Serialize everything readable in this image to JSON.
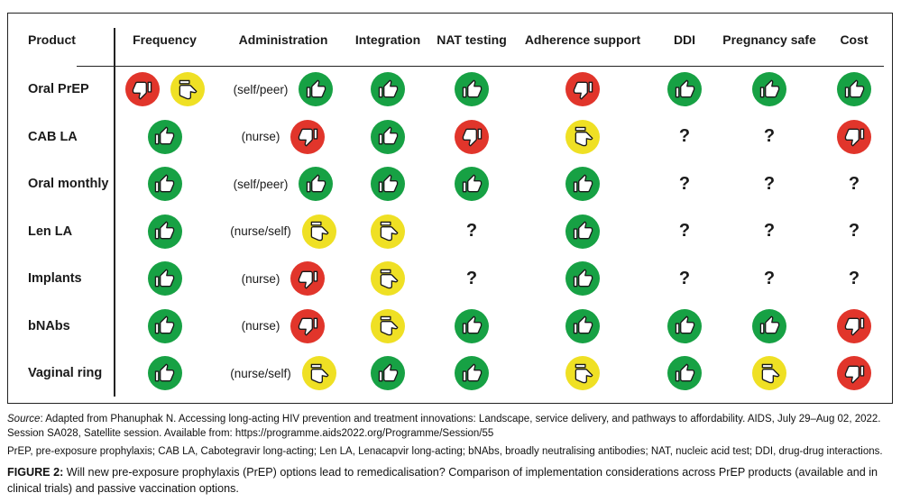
{
  "colors": {
    "green": "#17a144",
    "red": "#e1352b",
    "yellow": "#efe024",
    "line": "#222222"
  },
  "icon_legend": {
    "thumb-up": "favourable",
    "thumb-down": "unfavourable",
    "thumb-neutral": "intermediate",
    "?": "unknown"
  },
  "table": {
    "headers": [
      "Product",
      "Frequency",
      "Administration",
      "Integration",
      "NAT testing",
      "Adherence support",
      "DDI",
      "Pregnancy safe",
      "Cost"
    ],
    "rows": [
      {
        "product": "Oral PrEP",
        "cells": [
          [
            {
              "icon": "thumb-down",
              "color": "red"
            },
            {
              "icon": "thumb-neutral",
              "color": "yellow"
            }
          ],
          [
            {
              "text": "(self/peer)"
            },
            {
              "icon": "thumb-up",
              "color": "green"
            }
          ],
          [
            {
              "icon": "thumb-up",
              "color": "green"
            }
          ],
          [
            {
              "icon": "thumb-up",
              "color": "green"
            }
          ],
          [
            {
              "icon": "thumb-down",
              "color": "red"
            }
          ],
          [
            {
              "icon": "thumb-up",
              "color": "green"
            }
          ],
          [
            {
              "icon": "thumb-up",
              "color": "green"
            }
          ],
          [
            {
              "icon": "thumb-up",
              "color": "green"
            }
          ]
        ]
      },
      {
        "product": "CAB LA",
        "cells": [
          [
            {
              "icon": "thumb-up",
              "color": "green"
            }
          ],
          [
            {
              "text": "(nurse)"
            },
            {
              "icon": "thumb-down",
              "color": "red"
            }
          ],
          [
            {
              "icon": "thumb-up",
              "color": "green"
            }
          ],
          [
            {
              "icon": "thumb-down",
              "color": "red"
            }
          ],
          [
            {
              "icon": "thumb-neutral",
              "color": "yellow"
            }
          ],
          [
            {
              "text": "?"
            }
          ],
          [
            {
              "text": "?"
            }
          ],
          [
            {
              "icon": "thumb-down",
              "color": "red"
            }
          ]
        ]
      },
      {
        "product": "Oral monthly",
        "cells": [
          [
            {
              "icon": "thumb-up",
              "color": "green"
            }
          ],
          [
            {
              "text": "(self/peer)"
            },
            {
              "icon": "thumb-up",
              "color": "green"
            }
          ],
          [
            {
              "icon": "thumb-up",
              "color": "green"
            }
          ],
          [
            {
              "icon": "thumb-up",
              "color": "green"
            }
          ],
          [
            {
              "icon": "thumb-up",
              "color": "green"
            }
          ],
          [
            {
              "text": "?"
            }
          ],
          [
            {
              "text": "?"
            }
          ],
          [
            {
              "text": "?"
            }
          ]
        ]
      },
      {
        "product": "Len LA",
        "cells": [
          [
            {
              "icon": "thumb-up",
              "color": "green"
            }
          ],
          [
            {
              "text": "(nurse/self)"
            },
            {
              "icon": "thumb-neutral",
              "color": "yellow"
            }
          ],
          [
            {
              "icon": "thumb-neutral",
              "color": "yellow"
            }
          ],
          [
            {
              "text": "?"
            }
          ],
          [
            {
              "icon": "thumb-up",
              "color": "green"
            }
          ],
          [
            {
              "text": "?"
            }
          ],
          [
            {
              "text": "?"
            }
          ],
          [
            {
              "text": "?"
            }
          ]
        ]
      },
      {
        "product": "Implants",
        "cells": [
          [
            {
              "icon": "thumb-up",
              "color": "green"
            }
          ],
          [
            {
              "text": "(nurse)"
            },
            {
              "icon": "thumb-down",
              "color": "red"
            }
          ],
          [
            {
              "icon": "thumb-neutral",
              "color": "yellow"
            }
          ],
          [
            {
              "text": "?"
            }
          ],
          [
            {
              "icon": "thumb-up",
              "color": "green"
            }
          ],
          [
            {
              "text": "?"
            }
          ],
          [
            {
              "text": "?"
            }
          ],
          [
            {
              "text": "?"
            }
          ]
        ]
      },
      {
        "product": "bNAbs",
        "cells": [
          [
            {
              "icon": "thumb-up",
              "color": "green"
            }
          ],
          [
            {
              "text": "(nurse)"
            },
            {
              "icon": "thumb-down",
              "color": "red"
            }
          ],
          [
            {
              "icon": "thumb-neutral",
              "color": "yellow"
            }
          ],
          [
            {
              "icon": "thumb-up",
              "color": "green"
            }
          ],
          [
            {
              "icon": "thumb-up",
              "color": "green"
            }
          ],
          [
            {
              "icon": "thumb-up",
              "color": "green"
            }
          ],
          [
            {
              "icon": "thumb-up",
              "color": "green"
            }
          ],
          [
            {
              "icon": "thumb-down",
              "color": "red"
            }
          ]
        ]
      },
      {
        "product": "Vaginal ring",
        "cells": [
          [
            {
              "icon": "thumb-up",
              "color": "green"
            }
          ],
          [
            {
              "text": "(nurse/self)"
            },
            {
              "icon": "thumb-neutral",
              "color": "yellow"
            }
          ],
          [
            {
              "icon": "thumb-up",
              "color": "green"
            }
          ],
          [
            {
              "icon": "thumb-up",
              "color": "green"
            }
          ],
          [
            {
              "icon": "thumb-neutral",
              "color": "yellow"
            }
          ],
          [
            {
              "icon": "thumb-up",
              "color": "green"
            }
          ],
          [
            {
              "icon": "thumb-neutral",
              "color": "yellow"
            }
          ],
          [
            {
              "icon": "thumb-down",
              "color": "red"
            }
          ]
        ]
      }
    ]
  },
  "footer": {
    "source_label": "Source",
    "source_rest": ": Adapted from Phanuphak N. Accessing long-acting HIV prevention and treatment innovations: Landscape, service delivery, and pathways to affordability. AIDS, July 29–Aug 02, 2022. Session SA028, Satellite session. Available from: https://programme.aids2022.org/Programme/Session/55",
    "abbreviations": "PrEP, pre-exposure prophylaxis; CAB LA, Cabotegravir long-acting; Len LA, Lenacapvir long-acting; bNAbs, broadly neutralising antibodies; NAT, nucleic acid test; DDI, drug-drug interactions.",
    "caption_label": "FIGURE 2:",
    "caption_rest": " Will new pre-exposure prophylaxis (PrEP) options lead to remedicalisation? Comparison of implementation considerations across PrEP products (available and in clinical trials) and passive vaccination options."
  }
}
